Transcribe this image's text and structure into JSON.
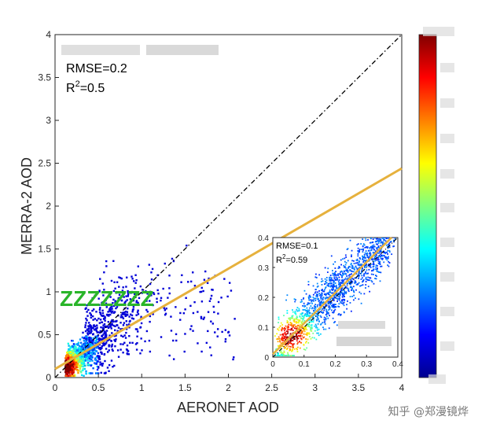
{
  "chart_data": [
    {
      "type": "scatter",
      "subtype": "density-scatter",
      "xlabel": "AERONET AOD",
      "ylabel": "MERRA-2 AOD",
      "xlim": [
        0,
        4
      ],
      "ylim": [
        0,
        4
      ],
      "xticks": [
        "0",
        "0.5",
        "1",
        "1.5",
        "2",
        "2.5",
        "3",
        "3.5",
        "4"
      ],
      "yticks": [
        "0",
        "0.5",
        "1",
        "1.5",
        "2",
        "2.5",
        "3",
        "3.5",
        "4"
      ],
      "grid": false,
      "rmse_text": "RMSE=0.2",
      "r2_prefix": "R",
      "r2_sup": "2",
      "r2_value": "=0.5",
      "annotation": "ZZZZZZZ",
      "one_to_one_line": {
        "x": [
          0,
          4
        ],
        "y": [
          0,
          4
        ]
      },
      "fit_line": {
        "x": [
          0,
          4
        ],
        "y": [
          0.1,
          2.44
        ]
      }
    },
    {
      "type": "scatter",
      "subtype": "density-scatter-inset",
      "xlim": [
        0,
        0.4
      ],
      "ylim": [
        0,
        0.4
      ],
      "xticks": [
        "0",
        "0.1",
        "0.2",
        "0.3",
        "0.4"
      ],
      "yticks": [
        "0",
        "0.1",
        "0.2",
        "0.3",
        "0.4"
      ],
      "rmse_text": "RMSE=0.1",
      "r2_prefix": "R",
      "r2_sup": "2",
      "r2_value": "=0.59",
      "one_to_one_line": {
        "x": [
          0,
          0.4
        ],
        "y": [
          0,
          0.4
        ]
      },
      "fit_line": {
        "x": [
          0,
          0.38
        ],
        "y": [
          0.01,
          0.4
        ]
      }
    }
  ],
  "colorbar": {
    "colormap": "jet",
    "colors": [
      "#00008f",
      "#0000ff",
      "#0080ff",
      "#00ffff",
      "#80ff80",
      "#ffff00",
      "#ff8000",
      "#ff0000",
      "#800000"
    ]
  },
  "watermark": "知乎 @郑漫镜烨"
}
